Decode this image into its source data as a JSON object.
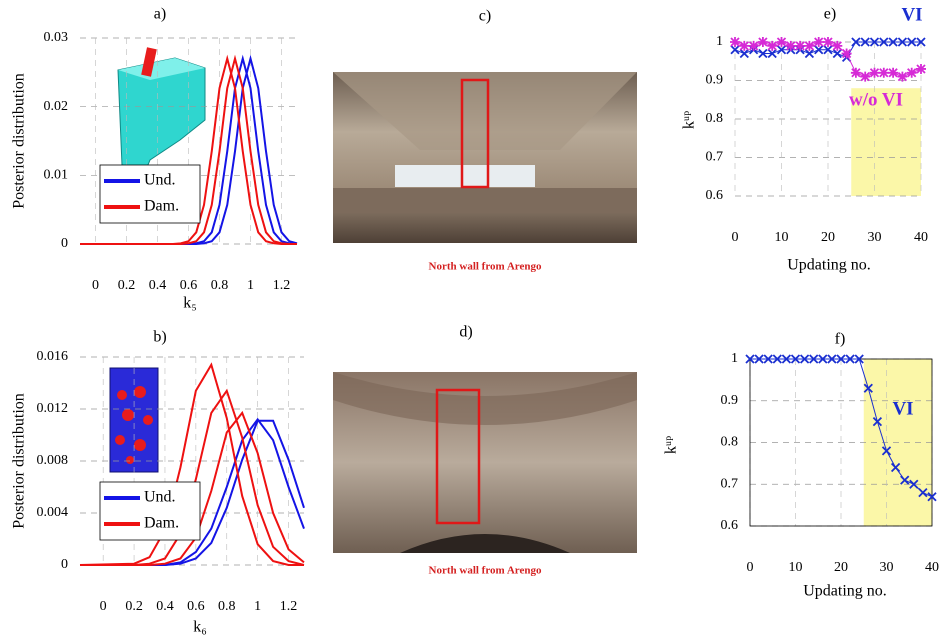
{
  "chart_data": [
    {
      "type": "line",
      "title": "a)",
      "ylabel": "Posterior distribution",
      "xlabel": "k₅",
      "x": [
        -0.1,
        0.45,
        0.5,
        0.55,
        0.6,
        0.65,
        0.7,
        0.75,
        0.8,
        0.85,
        0.9,
        0.95,
        1,
        1.05,
        1.1,
        1.15,
        1.2,
        1.25,
        1.3
      ],
      "xlim": [
        -0.1,
        1.3
      ],
      "ylim": [
        0,
        0.03
      ],
      "xticks": [
        0,
        0.2,
        0.4,
        0.6,
        0.8,
        1,
        1.2
      ],
      "yticks": [
        0,
        0.01,
        0.02,
        0.03
      ],
      "grid": true,
      "frame": false,
      "legend": "left",
      "series": [
        {
          "name": "Und.",
          "color": "#1414e6",
          "curves": [
            {
              "values": [
                0,
                0,
                0,
                0,
                0,
                0.0001,
                0.0004,
                0.0017,
                0.0057,
                0.0135,
                0.0227,
                0.027,
                0.0227,
                0.0135,
                0.0057,
                0.0017,
                0.0004,
                0.0001,
                0
              ]
            },
            {
              "values": [
                0,
                0,
                0,
                0,
                0,
                0,
                0.0001,
                0.0004,
                0.0017,
                0.0057,
                0.0135,
                0.0227,
                0.027,
                0.0227,
                0.0135,
                0.0057,
                0.0017,
                0.0004,
                0.0001
              ]
            }
          ]
        },
        {
          "name": "Dam.",
          "color": "#ee1111",
          "curves": [
            {
              "values": [
                0,
                0,
                0,
                0.0001,
                0.0004,
                0.0017,
                0.0057,
                0.0135,
                0.0227,
                0.027,
                0.0227,
                0.0135,
                0.0057,
                0.0017,
                0.0004,
                0.0001,
                0,
                0,
                0
              ]
            },
            {
              "values": [
                0,
                0,
                0,
                0,
                0.0001,
                0.0004,
                0.0017,
                0.0057,
                0.0135,
                0.0227,
                0.027,
                0.0227,
                0.0135,
                0.0057,
                0.0017,
                0.0004,
                0.0001,
                0,
                0
              ]
            }
          ]
        }
      ]
    },
    {
      "type": "line",
      "title": "b)",
      "ylabel": "Posterior distribution",
      "xlabel": "k₆",
      "x": [
        -0.15,
        0.2,
        0.3,
        0.4,
        0.5,
        0.6,
        0.7,
        0.8,
        0.9,
        1,
        1.1,
        1.2,
        1.3
      ],
      "xlim": [
        -0.15,
        1.3
      ],
      "ylim": [
        0,
        0.016
      ],
      "xticks": [
        0,
        0.2,
        0.4,
        0.6,
        0.8,
        1,
        1.2
      ],
      "yticks": [
        0,
        0.004,
        0.008,
        0.012,
        0.016
      ],
      "grid": true,
      "frame": false,
      "legend": "left",
      "series": [
        {
          "name": "Und.",
          "color": "#1414e6",
          "curves": [
            {
              "values": [
                0,
                0,
                0,
                0,
                0.0002,
                0.001,
                0.0028,
                0.006,
                0.0096,
                0.0112,
                0.0096,
                0.006,
                0.0028
              ]
            },
            {
              "values": [
                0,
                0,
                0,
                0,
                0.0001,
                0.0005,
                0.0017,
                0.0044,
                0.0081,
                0.0111,
                0.0111,
                0.0081,
                0.0044
              ]
            }
          ]
        },
        {
          "name": "Dam.",
          "color": "#ee1111",
          "curves": [
            {
              "values": [
                0,
                0.0001,
                0.0006,
                0.0027,
                0.0075,
                0.0134,
                0.0154,
                0.0113,
                0.0053,
                0.0016,
                0.0003,
                0,
                0
              ]
            },
            {
              "values": [
                0,
                0,
                0.0001,
                0.0005,
                0.0024,
                0.0066,
                0.0117,
                0.0134,
                0.0098,
                0.0046,
                0.0014,
                0.0003,
                0
              ]
            },
            {
              "values": [
                0,
                0,
                0,
                0.0001,
                0.0005,
                0.0021,
                0.0057,
                0.0102,
                0.0117,
                0.0086,
                0.004,
                0.0012,
                0.0002
              ]
            }
          ]
        }
      ]
    },
    {
      "type": "line",
      "title": "e)",
      "ylabel": "kᵘᵖ",
      "xlabel": "Updating no.",
      "x": [
        0,
        2,
        4,
        6,
        8,
        10,
        12,
        14,
        16,
        18,
        20,
        22,
        24,
        26,
        28,
        30,
        32,
        34,
        36,
        38,
        40
      ],
      "xlim": [
        0,
        40
      ],
      "ylim": [
        0.6,
        1
      ],
      "xticks": [
        0,
        10,
        20,
        30,
        40
      ],
      "yticks": [
        0.6,
        0.7,
        0.8,
        0.9,
        1
      ],
      "grid": true,
      "frame": false,
      "highlight": {
        "x": [
          25,
          40
        ],
        "y": [
          0.6,
          0.88
        ],
        "color": "#fbf7a8"
      },
      "annotations": [
        {
          "text": "VI",
          "color": "#1a2fd0"
        },
        {
          "text": "w/o VI",
          "color": "#d62ad6"
        }
      ],
      "series": [
        {
          "name": "VI",
          "color": "#1a2fd0",
          "marker": "x",
          "values": [
            0.98,
            0.97,
            0.98,
            0.97,
            0.97,
            0.98,
            0.98,
            0.98,
            0.97,
            0.98,
            0.98,
            0.97,
            0.96,
            1,
            1,
            1,
            1,
            1,
            1,
            1,
            1
          ]
        },
        {
          "name": "w/o VI",
          "color": "#d62ad6",
          "marker": "star",
          "values": [
            1,
            0.99,
            0.99,
            1,
            0.99,
            1,
            0.99,
            0.99,
            0.99,
            1,
            1,
            0.99,
            0.97,
            0.92,
            0.91,
            0.92,
            0.92,
            0.92,
            0.91,
            0.92,
            0.93
          ]
        }
      ]
    },
    {
      "type": "line",
      "title": "f)",
      "ylabel": "kᵘᵖ",
      "xlabel": "Updating no.",
      "x": [
        0,
        2,
        4,
        6,
        8,
        10,
        12,
        14,
        16,
        18,
        20,
        22,
        24,
        26,
        28,
        30,
        32,
        34,
        36,
        38,
        40
      ],
      "xlim": [
        0,
        40
      ],
      "ylim": [
        0.6,
        1
      ],
      "xticks": [
        0,
        10,
        20,
        30,
        40
      ],
      "yticks": [
        0.6,
        0.7,
        0.8,
        0.9,
        1
      ],
      "grid": true,
      "frame": true,
      "highlight": {
        "x": [
          25,
          40
        ],
        "y": [
          0.6,
          1
        ],
        "color": "#fbf7a8"
      },
      "annotations": [
        {
          "text": "VI",
          "color": "#1a2fd0"
        }
      ],
      "series": [
        {
          "name": "VI",
          "color": "#1a2fd0",
          "marker": "x",
          "values": [
            1,
            1,
            1,
            1,
            1,
            1,
            1,
            1,
            1,
            1,
            1,
            1,
            1,
            0.93,
            0.85,
            0.78,
            0.74,
            0.71,
            0.7,
            0.68,
            0.67
          ]
        }
      ]
    }
  ],
  "photos": [
    {
      "label": "c)",
      "caption": "North wall from Arengo"
    },
    {
      "label": "d)",
      "caption": "North wall from Arengo"
    }
  ]
}
